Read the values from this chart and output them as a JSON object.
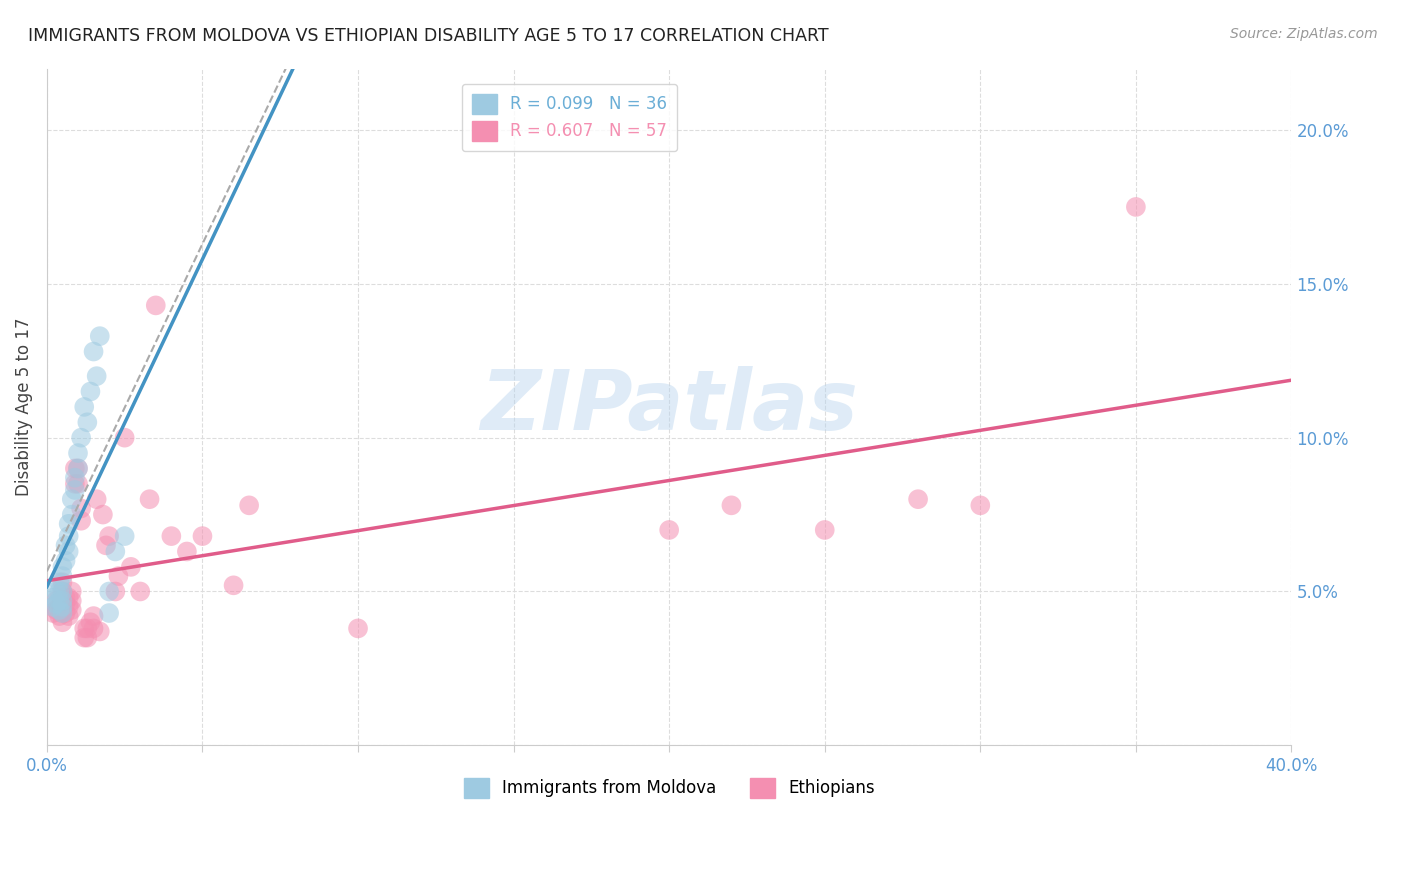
{
  "title": "IMMIGRANTS FROM MOLDOVA VS ETHIOPIAN DISABILITY AGE 5 TO 17 CORRELATION CHART",
  "source": "Source: ZipAtlas.com",
  "ylabel": "Disability Age 5 to 17",
  "xlim": [
    0.0,
    0.4
  ],
  "ylim": [
    0.0,
    0.22
  ],
  "x_ticks": [
    0.0,
    0.05,
    0.1,
    0.15,
    0.2,
    0.25,
    0.3,
    0.35,
    0.4
  ],
  "y_ticks": [
    0.0,
    0.05,
    0.1,
    0.15,
    0.2
  ],
  "legend1_label": "R = 0.099   N = 36",
  "legend2_label": "R = 0.607   N = 57",
  "legend1_color": "#6baed6",
  "legend2_color": "#f48fb1",
  "blue_line_color": "#4393c3",
  "pink_line_color": "#e05c8a",
  "dash_line_color": "#aaaaaa",
  "watermark": "ZIPatlas",
  "moldova_x": [
    0.002,
    0.002,
    0.003,
    0.003,
    0.004,
    0.004,
    0.004,
    0.004,
    0.005,
    0.005,
    0.005,
    0.005,
    0.005,
    0.005,
    0.006,
    0.006,
    0.007,
    0.007,
    0.007,
    0.008,
    0.008,
    0.009,
    0.009,
    0.01,
    0.01,
    0.011,
    0.012,
    0.013,
    0.014,
    0.015,
    0.016,
    0.017,
    0.02,
    0.02,
    0.022,
    0.025
  ],
  "moldova_y": [
    0.045,
    0.048,
    0.046,
    0.05,
    0.044,
    0.047,
    0.05,
    0.053,
    0.043,
    0.045,
    0.047,
    0.05,
    0.055,
    0.058,
    0.06,
    0.065,
    0.063,
    0.068,
    0.072,
    0.075,
    0.08,
    0.083,
    0.087,
    0.09,
    0.095,
    0.1,
    0.11,
    0.105,
    0.115,
    0.128,
    0.12,
    0.133,
    0.043,
    0.05,
    0.063,
    0.068
  ],
  "ethiopian_x": [
    0.002,
    0.003,
    0.003,
    0.004,
    0.004,
    0.005,
    0.005,
    0.005,
    0.005,
    0.005,
    0.005,
    0.006,
    0.006,
    0.006,
    0.007,
    0.007,
    0.007,
    0.008,
    0.008,
    0.008,
    0.009,
    0.009,
    0.01,
    0.01,
    0.011,
    0.011,
    0.012,
    0.012,
    0.013,
    0.013,
    0.014,
    0.015,
    0.015,
    0.016,
    0.017,
    0.018,
    0.019,
    0.02,
    0.022,
    0.023,
    0.025,
    0.027,
    0.03,
    0.033,
    0.035,
    0.04,
    0.045,
    0.05,
    0.06,
    0.065,
    0.1,
    0.2,
    0.22,
    0.25,
    0.28,
    0.3,
    0.35
  ],
  "ethiopian_y": [
    0.043,
    0.044,
    0.047,
    0.042,
    0.045,
    0.04,
    0.043,
    0.045,
    0.047,
    0.05,
    0.053,
    0.043,
    0.046,
    0.048,
    0.042,
    0.045,
    0.048,
    0.044,
    0.047,
    0.05,
    0.085,
    0.09,
    0.085,
    0.09,
    0.073,
    0.077,
    0.035,
    0.038,
    0.035,
    0.038,
    0.04,
    0.038,
    0.042,
    0.08,
    0.037,
    0.075,
    0.065,
    0.068,
    0.05,
    0.055,
    0.1,
    0.058,
    0.05,
    0.08,
    0.143,
    0.068,
    0.063,
    0.068,
    0.052,
    0.078,
    0.038,
    0.07,
    0.078,
    0.07,
    0.08,
    0.078,
    0.175
  ]
}
